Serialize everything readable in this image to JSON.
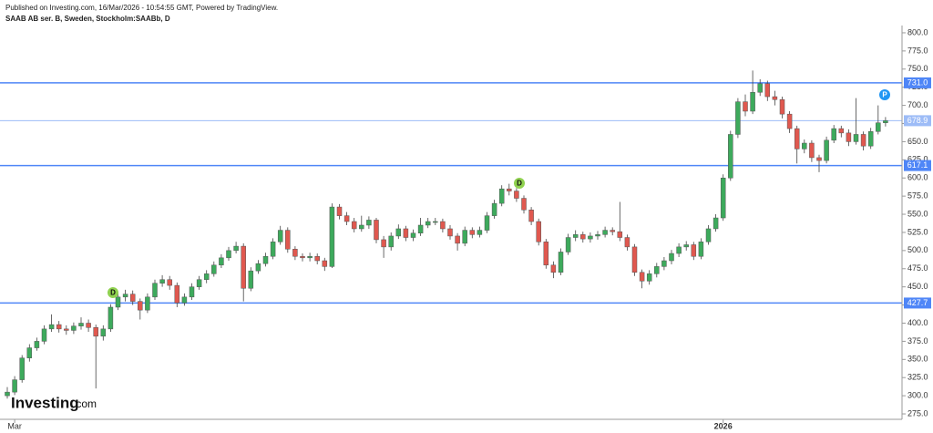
{
  "header": {
    "published": "Published on Investing.com, 16/Mar/2026 - 10:54:55 GMT, Powered by TradingView.",
    "symbol": "SAAB AB ser. B, Sweden, Stockholm:SAABb, D"
  },
  "logo": {
    "brand": "Investing",
    "suffix": ".com"
  },
  "chart_data": {
    "type": "candlestick",
    "categories": [
      null,
      "Mar",
      null,
      null,
      null,
      null,
      null,
      null,
      null,
      null,
      null,
      null,
      null,
      null,
      null,
      null,
      null,
      null,
      null,
      null,
      null,
      null,
      null,
      null,
      null,
      null,
      null,
      null,
      null,
      null,
      null,
      null,
      null,
      null,
      null,
      null,
      null,
      null,
      null,
      null,
      null,
      null,
      null,
      null,
      null,
      null,
      null,
      null,
      null,
      null,
      null,
      null,
      null,
      null,
      null,
      null,
      null,
      null,
      null,
      null,
      null,
      null,
      null,
      null,
      null,
      null,
      null,
      null,
      null,
      null,
      null,
      null,
      null,
      null,
      null,
      null,
      null,
      null,
      null,
      null,
      null,
      null,
      null,
      null,
      null,
      null,
      null,
      null,
      null,
      null,
      null,
      null,
      null,
      null,
      null,
      null,
      null,
      "2026",
      null,
      null,
      null,
      null,
      null,
      null,
      null,
      null,
      null,
      null,
      null,
      null,
      null,
      null,
      null,
      null,
      null,
      null,
      null,
      null,
      null,
      null
    ],
    "open": [
      300,
      305,
      322,
      352,
      366,
      375,
      392,
      398,
      392,
      390,
      396,
      400,
      394,
      382,
      392,
      422,
      436,
      440,
      430,
      418,
      436,
      455,
      460,
      452,
      428,
      436,
      450,
      460,
      468,
      480,
      490,
      500,
      506,
      448,
      472,
      482,
      492,
      512,
      528,
      502,
      492,
      490,
      492,
      486,
      478,
      560,
      548,
      540,
      530,
      535,
      542,
      515,
      505,
      520,
      530,
      518,
      524,
      535,
      540,
      540,
      530,
      520,
      510,
      528,
      522,
      528,
      548,
      565,
      585,
      582,
      572,
      556,
      540,
      512,
      480,
      470,
      498,
      518,
      522,
      516,
      520,
      522,
      528,
      526,
      518,
      505,
      470,
      458,
      468,
      478,
      486,
      496,
      505,
      508,
      492,
      512,
      530,
      545,
      600,
      660,
      705,
      692,
      718,
      730,
      712,
      708,
      688,
      668,
      640,
      648,
      628,
      624,
      652,
      668,
      662,
      650,
      660,
      644,
      664,
      676
    ],
    "high": [
      312,
      327,
      356,
      371,
      380,
      397,
      412,
      403,
      397,
      401,
      408,
      405,
      398,
      397,
      426,
      441,
      446,
      445,
      434,
      441,
      460,
      466,
      465,
      456,
      441,
      455,
      465,
      473,
      485,
      495,
      505,
      512,
      510,
      477,
      487,
      497,
      517,
      534,
      532,
      506,
      496,
      497,
      496,
      490,
      565,
      564,
      553,
      545,
      548,
      547,
      545,
      520,
      525,
      536,
      534,
      529,
      545,
      545,
      545,
      544,
      535,
      524,
      533,
      532,
      533,
      553,
      570,
      590,
      592,
      586,
      576,
      560,
      544,
      516,
      485,
      503,
      523,
      528,
      526,
      525,
      527,
      533,
      532,
      567,
      522,
      509,
      474,
      473,
      483,
      491,
      501,
      510,
      513,
      512,
      517,
      535,
      550,
      605,
      665,
      710,
      715,
      748,
      736,
      734,
      720,
      712,
      692,
      672,
      653,
      652,
      632,
      657,
      673,
      672,
      667,
      710,
      664,
      669,
      700,
      684
    ],
    "low": [
      296,
      301,
      318,
      347,
      362,
      371,
      388,
      387,
      384,
      385,
      391,
      388,
      310,
      376,
      388,
      418,
      430,
      425,
      405,
      414,
      432,
      450,
      446,
      422,
      424,
      432,
      446,
      455,
      464,
      476,
      486,
      496,
      430,
      444,
      468,
      478,
      488,
      508,
      497,
      487,
      485,
      485,
      481,
      472,
      476,
      543,
      535,
      525,
      526,
      530,
      510,
      490,
      500,
      516,
      513,
      513,
      520,
      531,
      535,
      525,
      515,
      500,
      506,
      517,
      518,
      524,
      544,
      561,
      576,
      567,
      551,
      535,
      507,
      475,
      462,
      466,
      494,
      513,
      511,
      511,
      515,
      518,
      521,
      513,
      500,
      465,
      448,
      453,
      463,
      473,
      481,
      491,
      500,
      487,
      488,
      508,
      526,
      541,
      596,
      655,
      685,
      688,
      713,
      706,
      700,
      682,
      662,
      620,
      634,
      622,
      608,
      620,
      648,
      656,
      644,
      646,
      638,
      640,
      660,
      671
    ],
    "close": [
      305,
      322,
      352,
      366,
      375,
      392,
      398,
      392,
      390,
      396,
      400,
      394,
      382,
      392,
      422,
      436,
      440,
      430,
      418,
      436,
      455,
      460,
      452,
      428,
      436,
      450,
      460,
      468,
      480,
      490,
      500,
      506,
      448,
      472,
      482,
      492,
      512,
      528,
      502,
      492,
      490,
      492,
      486,
      478,
      560,
      548,
      540,
      530,
      535,
      542,
      515,
      505,
      520,
      530,
      518,
      524,
      535,
      540,
      540,
      530,
      520,
      510,
      528,
      522,
      528,
      548,
      565,
      585,
      582,
      572,
      556,
      540,
      512,
      480,
      470,
      498,
      518,
      522,
      516,
      520,
      522,
      528,
      526,
      518,
      505,
      470,
      458,
      468,
      478,
      486,
      496,
      505,
      508,
      492,
      512,
      530,
      545,
      600,
      660,
      705,
      692,
      718,
      730,
      712,
      708,
      688,
      668,
      640,
      648,
      628,
      624,
      652,
      668,
      662,
      650,
      660,
      644,
      664,
      676,
      678.9
    ],
    "up_color": "#3daa5c",
    "down_color": "#e0584f",
    "ylim": [
      267.5,
      807.5
    ],
    "yticks": [
      {
        "value": 275,
        "label": "275.0"
      },
      {
        "value": 300,
        "label": "300.0"
      },
      {
        "value": 325,
        "label": "325.0"
      },
      {
        "value": 350,
        "label": "350.0"
      },
      {
        "value": 375,
        "label": "375.0"
      },
      {
        "value": 400,
        "label": "400.0"
      },
      {
        "value": 425,
        "label": "425.0"
      },
      {
        "value": 450,
        "label": "450.0"
      },
      {
        "value": 475,
        "label": "475.0"
      },
      {
        "value": 500,
        "label": "500.0"
      },
      {
        "value": 525,
        "label": "525.0"
      },
      {
        "value": 550,
        "label": "550.0"
      },
      {
        "value": 575,
        "label": "575.0"
      },
      {
        "value": 600,
        "label": "600.0"
      },
      {
        "value": 625,
        "label": "625.0"
      },
      {
        "value": 650,
        "label": "650.0"
      },
      {
        "value": 675,
        "label": "675.0"
      },
      {
        "value": 700,
        "label": "700.0"
      },
      {
        "value": 725,
        "label": "725.0"
      },
      {
        "value": 750,
        "label": "750.0"
      },
      {
        "value": 775,
        "label": "775.0"
      },
      {
        "value": 800,
        "label": "800.0"
      }
    ],
    "levels": [
      {
        "value": 731,
        "label": "731.0",
        "color": "#4f86f7"
      },
      {
        "value": 678.9,
        "color": "#9dbcf7"
      },
      {
        "value": 617.1,
        "color": "#4f86f7"
      },
      {
        "value": 427.7,
        "color": "#4f86f7"
      }
    ],
    "markers": [
      {
        "label": "D",
        "color": "#8fd14f"
      },
      {
        "label": "D",
        "color": "#8fd14f"
      },
      {
        "label": "P",
        "color": "#2196f3"
      }
    ]
  }
}
